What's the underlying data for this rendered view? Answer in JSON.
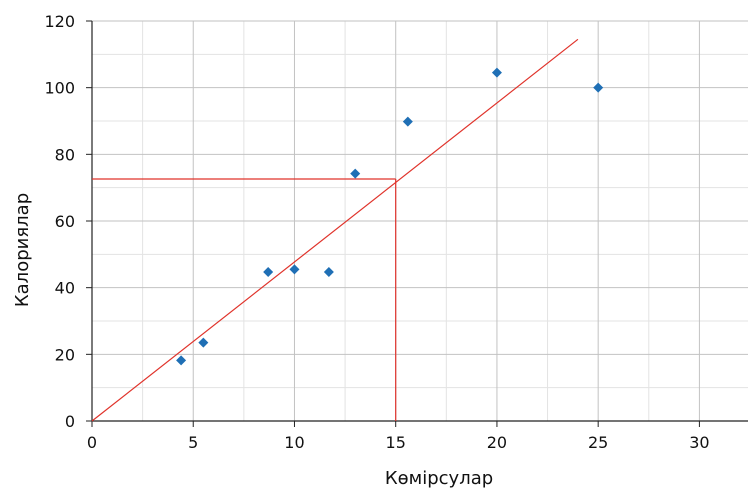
{
  "chart_data": {
    "type": "scatter",
    "xlabel": "Көмірсулар",
    "ylabel": "Калориялар",
    "xlim": [
      0,
      32.4
    ],
    "ylim": [
      0,
      120
    ],
    "x_ticks": [
      0,
      5,
      10,
      15,
      20,
      25,
      30
    ],
    "y_ticks": [
      0,
      20,
      40,
      60,
      80,
      100,
      120
    ],
    "x_minor_step": 2.5,
    "y_minor_step": 10,
    "grid": true,
    "series": [
      {
        "points": [
          {
            "x": 4.4,
            "y": 18.2
          },
          {
            "x": 5.5,
            "y": 23.5
          },
          {
            "x": 8.7,
            "y": 44.7
          },
          {
            "x": 10.0,
            "y": 45.5
          },
          {
            "x": 11.7,
            "y": 44.7
          },
          {
            "x": 13.0,
            "y": 74.2
          },
          {
            "x": 15.6,
            "y": 89.8
          },
          {
            "x": 20.0,
            "y": 104.5
          },
          {
            "x": 25.0,
            "y": 100.0
          }
        ],
        "color": "#1f6fb5",
        "marker": "diamond"
      }
    ],
    "trend_line": {
      "from": [
        0,
        0
      ],
      "to": [
        24,
        114.5
      ],
      "color": "#e0332b"
    },
    "reference_lines": {
      "x": 15,
      "y": 72.6,
      "color": "#e0332b"
    }
  }
}
